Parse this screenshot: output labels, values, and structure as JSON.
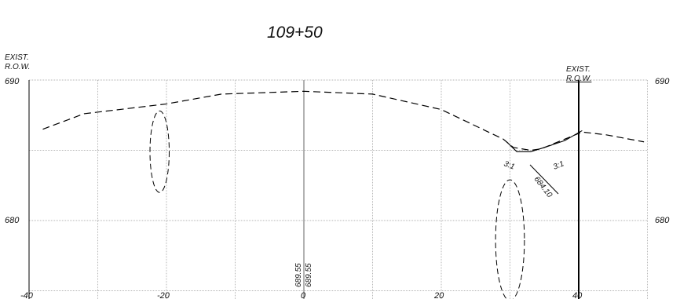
{
  "title": "109+50",
  "labels": {
    "left_row_line1": "EXIST.",
    "left_row_line2": "R.O.W.",
    "right_row_line1": "EXIST.",
    "right_row_line2": "R.O.W."
  },
  "x_ticks": [
    "-40",
    "-20",
    "0",
    "20",
    "40"
  ],
  "y_ticks_left": [
    "690",
    "680"
  ],
  "y_ticks_right": [
    "690",
    "680"
  ],
  "annotations": {
    "centerline_elev_1": "689.55",
    "centerline_elev_2": "689.55",
    "slope_left": "3:1",
    "slope_right": "3:1",
    "ditch_elev": "684.10"
  },
  "chart_data": {
    "type": "line",
    "title": "109+50",
    "xlim": [
      -40,
      50
    ],
    "ylim": [
      673.5,
      690
    ],
    "grid": true,
    "x_ticks": [
      -40,
      -20,
      0,
      20,
      40
    ],
    "y_ticks": [
      690,
      680
    ],
    "series": [
      {
        "style": "dashed",
        "x": [
          -38,
          -32,
          -20,
          -12,
          0,
          10,
          20,
          29,
          30.5,
          33,
          34.5,
          38,
          40.5,
          44,
          49.5
        ],
        "y": [
          686.5,
          687.6,
          688.3,
          689.0,
          689.2,
          689.0,
          687.9,
          685.8,
          685.2,
          685.0,
          685.1,
          685.8,
          686.3,
          686.1,
          685.6
        ]
      },
      {
        "style": "solid",
        "x": [
          29.5,
          31,
          33,
          35,
          38,
          40.5
        ],
        "y": [
          685.6,
          684.9,
          684.9,
          685.2,
          685.7,
          686.4
        ]
      }
    ],
    "ellipses": [
      {
        "cx": -21,
        "cy": 684.9,
        "rx": 1.4,
        "ry": 2.9
      },
      {
        "cx": 30,
        "cy": 678.6,
        "rx": 2.1,
        "ry": 4.3
      }
    ],
    "row_lines_x": [
      -40,
      40
    ],
    "centerline_x": 0
  }
}
